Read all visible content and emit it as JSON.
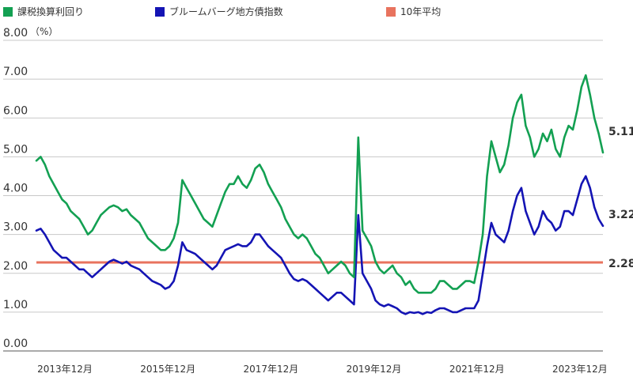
{
  "chart_data": {
    "type": "line",
    "unit_label": "（%）",
    "ylim": [
      0,
      8
    ],
    "y_ticks": [
      "0.00",
      "1.00",
      "2.00",
      "3.00",
      "4.00",
      "5.00",
      "6.00",
      "7.00",
      "8.00"
    ],
    "x_tick_labels": [
      "2013年12月",
      "2015年12月",
      "2017年12月",
      "2019年12月",
      "2021年12月",
      "2023年12月"
    ],
    "x_start": "2013-12",
    "x_end": "2024-12",
    "grid": true,
    "legend_position": "top",
    "series": [
      {
        "name": "課税換算利回り",
        "color": "#13a052",
        "end_label": "5.11",
        "points": [
          [
            "2013-12",
            4.9
          ],
          [
            "2014-01",
            5.0
          ],
          [
            "2014-02",
            4.8
          ],
          [
            "2014-03",
            4.5
          ],
          [
            "2014-04",
            4.3
          ],
          [
            "2014-05",
            4.1
          ],
          [
            "2014-06",
            3.9
          ],
          [
            "2014-07",
            3.8
          ],
          [
            "2014-08",
            3.6
          ],
          [
            "2014-09",
            3.5
          ],
          [
            "2014-10",
            3.4
          ],
          [
            "2014-11",
            3.2
          ],
          [
            "2014-12",
            3.0
          ],
          [
            "2015-01",
            3.1
          ],
          [
            "2015-02",
            3.3
          ],
          [
            "2015-03",
            3.5
          ],
          [
            "2015-04",
            3.6
          ],
          [
            "2015-05",
            3.7
          ],
          [
            "2015-06",
            3.75
          ],
          [
            "2015-07",
            3.7
          ],
          [
            "2015-08",
            3.6
          ],
          [
            "2015-09",
            3.65
          ],
          [
            "2015-10",
            3.5
          ],
          [
            "2015-11",
            3.4
          ],
          [
            "2015-12",
            3.3
          ],
          [
            "2016-01",
            3.1
          ],
          [
            "2016-02",
            2.9
          ],
          [
            "2016-03",
            2.8
          ],
          [
            "2016-04",
            2.7
          ],
          [
            "2016-05",
            2.6
          ],
          [
            "2016-06",
            2.6
          ],
          [
            "2016-07",
            2.7
          ],
          [
            "2016-08",
            2.9
          ],
          [
            "2016-09",
            3.3
          ],
          [
            "2016-10",
            4.4
          ],
          [
            "2016-11",
            4.2
          ],
          [
            "2016-12",
            4.0
          ],
          [
            "2017-01",
            3.8
          ],
          [
            "2017-02",
            3.6
          ],
          [
            "2017-03",
            3.4
          ],
          [
            "2017-04",
            3.3
          ],
          [
            "2017-05",
            3.2
          ],
          [
            "2017-06",
            3.5
          ],
          [
            "2017-07",
            3.8
          ],
          [
            "2017-08",
            4.1
          ],
          [
            "2017-09",
            4.3
          ],
          [
            "2017-10",
            4.3
          ],
          [
            "2017-11",
            4.5
          ],
          [
            "2017-12",
            4.3
          ],
          [
            "2018-01",
            4.2
          ],
          [
            "2018-02",
            4.4
          ],
          [
            "2018-03",
            4.7
          ],
          [
            "2018-04",
            4.8
          ],
          [
            "2018-05",
            4.6
          ],
          [
            "2018-06",
            4.3
          ],
          [
            "2018-07",
            4.1
          ],
          [
            "2018-08",
            3.9
          ],
          [
            "2018-09",
            3.7
          ],
          [
            "2018-10",
            3.4
          ],
          [
            "2018-11",
            3.2
          ],
          [
            "2018-12",
            3.0
          ],
          [
            "2019-01",
            2.9
          ],
          [
            "2019-02",
            3.0
          ],
          [
            "2019-03",
            2.9
          ],
          [
            "2019-04",
            2.7
          ],
          [
            "2019-05",
            2.5
          ],
          [
            "2019-06",
            2.4
          ],
          [
            "2019-07",
            2.2
          ],
          [
            "2019-08",
            2.0
          ],
          [
            "2019-09",
            2.1
          ],
          [
            "2019-10",
            2.2
          ],
          [
            "2019-11",
            2.3
          ],
          [
            "2019-12",
            2.2
          ],
          [
            "2020-01",
            2.0
          ],
          [
            "2020-02",
            1.9
          ],
          [
            "2020-03",
            5.5
          ],
          [
            "2020-04",
            3.1
          ],
          [
            "2020-05",
            2.9
          ],
          [
            "2020-06",
            2.7
          ],
          [
            "2020-07",
            2.3
          ],
          [
            "2020-08",
            2.1
          ],
          [
            "2020-09",
            2.0
          ],
          [
            "2020-10",
            2.1
          ],
          [
            "2020-11",
            2.2
          ],
          [
            "2020-12",
            2.0
          ],
          [
            "2021-01",
            1.9
          ],
          [
            "2021-02",
            1.7
          ],
          [
            "2021-03",
            1.8
          ],
          [
            "2021-04",
            1.6
          ],
          [
            "2021-05",
            1.5
          ],
          [
            "2021-06",
            1.5
          ],
          [
            "2021-07",
            1.5
          ],
          [
            "2021-08",
            1.5
          ],
          [
            "2021-09",
            1.6
          ],
          [
            "2021-10",
            1.8
          ],
          [
            "2021-11",
            1.8
          ],
          [
            "2021-12",
            1.7
          ],
          [
            "2022-01",
            1.6
          ],
          [
            "2022-02",
            1.6
          ],
          [
            "2022-03",
            1.7
          ],
          [
            "2022-04",
            1.8
          ],
          [
            "2022-05",
            1.8
          ],
          [
            "2022-06",
            1.75
          ],
          [
            "2022-07",
            2.3
          ],
          [
            "2022-08",
            3.0
          ],
          [
            "2022-09",
            4.5
          ],
          [
            "2022-10",
            5.4
          ],
          [
            "2022-11",
            5.0
          ],
          [
            "2022-12",
            4.6
          ],
          [
            "2023-01",
            4.8
          ],
          [
            "2023-02",
            5.3
          ],
          [
            "2023-03",
            6.0
          ],
          [
            "2023-04",
            6.4
          ],
          [
            "2023-05",
            6.6
          ],
          [
            "2023-06",
            5.8
          ],
          [
            "2023-07",
            5.5
          ],
          [
            "2023-08",
            5.0
          ],
          [
            "2023-09",
            5.2
          ],
          [
            "2023-10",
            5.6
          ],
          [
            "2023-11",
            5.4
          ],
          [
            "2023-12",
            5.7
          ],
          [
            "2024-01",
            5.2
          ],
          [
            "2024-02",
            5.0
          ],
          [
            "2024-03",
            5.5
          ],
          [
            "2024-04",
            5.8
          ],
          [
            "2024-05",
            5.7
          ],
          [
            "2024-06",
            6.2
          ],
          [
            "2024-07",
            6.8
          ],
          [
            "2024-08",
            7.1
          ],
          [
            "2024-09",
            6.6
          ],
          [
            "2024-10",
            6.0
          ],
          [
            "2024-11",
            5.6
          ],
          [
            "2024-12",
            5.11
          ]
        ]
      },
      {
        "name": "ブルームバーグ地方債指数",
        "color": "#1414b4",
        "end_label": "3.22",
        "points": [
          [
            "2013-12",
            3.1
          ],
          [
            "2014-01",
            3.15
          ],
          [
            "2014-02",
            3.0
          ],
          [
            "2014-03",
            2.8
          ],
          [
            "2014-04",
            2.6
          ],
          [
            "2014-05",
            2.5
          ],
          [
            "2014-06",
            2.4
          ],
          [
            "2014-07",
            2.4
          ],
          [
            "2014-08",
            2.3
          ],
          [
            "2014-09",
            2.2
          ],
          [
            "2014-10",
            2.1
          ],
          [
            "2014-11",
            2.1
          ],
          [
            "2014-12",
            2.0
          ],
          [
            "2015-01",
            1.9
          ],
          [
            "2015-02",
            2.0
          ],
          [
            "2015-03",
            2.1
          ],
          [
            "2015-04",
            2.2
          ],
          [
            "2015-05",
            2.3
          ],
          [
            "2015-06",
            2.35
          ],
          [
            "2015-07",
            2.3
          ],
          [
            "2015-08",
            2.25
          ],
          [
            "2015-09",
            2.3
          ],
          [
            "2015-10",
            2.2
          ],
          [
            "2015-11",
            2.15
          ],
          [
            "2015-12",
            2.1
          ],
          [
            "2016-01",
            2.0
          ],
          [
            "2016-02",
            1.9
          ],
          [
            "2016-03",
            1.8
          ],
          [
            "2016-04",
            1.75
          ],
          [
            "2016-05",
            1.7
          ],
          [
            "2016-06",
            1.6
          ],
          [
            "2016-07",
            1.65
          ],
          [
            "2016-08",
            1.8
          ],
          [
            "2016-09",
            2.2
          ],
          [
            "2016-10",
            2.8
          ],
          [
            "2016-11",
            2.6
          ],
          [
            "2016-12",
            2.55
          ],
          [
            "2017-01",
            2.5
          ],
          [
            "2017-02",
            2.4
          ],
          [
            "2017-03",
            2.3
          ],
          [
            "2017-04",
            2.2
          ],
          [
            "2017-05",
            2.1
          ],
          [
            "2017-06",
            2.2
          ],
          [
            "2017-07",
            2.4
          ],
          [
            "2017-08",
            2.6
          ],
          [
            "2017-09",
            2.65
          ],
          [
            "2017-10",
            2.7
          ],
          [
            "2017-11",
            2.75
          ],
          [
            "2017-12",
            2.7
          ],
          [
            "2018-01",
            2.7
          ],
          [
            "2018-02",
            2.8
          ],
          [
            "2018-03",
            3.0
          ],
          [
            "2018-04",
            3.0
          ],
          [
            "2018-05",
            2.85
          ],
          [
            "2018-06",
            2.7
          ],
          [
            "2018-07",
            2.6
          ],
          [
            "2018-08",
            2.5
          ],
          [
            "2018-09",
            2.4
          ],
          [
            "2018-10",
            2.2
          ],
          [
            "2018-11",
            2.0
          ],
          [
            "2018-12",
            1.85
          ],
          [
            "2019-01",
            1.8
          ],
          [
            "2019-02",
            1.85
          ],
          [
            "2019-03",
            1.8
          ],
          [
            "2019-04",
            1.7
          ],
          [
            "2019-05",
            1.6
          ],
          [
            "2019-06",
            1.5
          ],
          [
            "2019-07",
            1.4
          ],
          [
            "2019-08",
            1.3
          ],
          [
            "2019-09",
            1.4
          ],
          [
            "2019-10",
            1.5
          ],
          [
            "2019-11",
            1.5
          ],
          [
            "2019-12",
            1.4
          ],
          [
            "2020-01",
            1.3
          ],
          [
            "2020-02",
            1.2
          ],
          [
            "2020-03",
            3.5
          ],
          [
            "2020-04",
            2.0
          ],
          [
            "2020-05",
            1.8
          ],
          [
            "2020-06",
            1.6
          ],
          [
            "2020-07",
            1.3
          ],
          [
            "2020-08",
            1.2
          ],
          [
            "2020-09",
            1.15
          ],
          [
            "2020-10",
            1.2
          ],
          [
            "2020-11",
            1.15
          ],
          [
            "2020-12",
            1.1
          ],
          [
            "2021-01",
            1.0
          ],
          [
            "2021-02",
            0.95
          ],
          [
            "2021-03",
            1.0
          ],
          [
            "2021-04",
            0.98
          ],
          [
            "2021-05",
            1.0
          ],
          [
            "2021-06",
            0.95
          ],
          [
            "2021-07",
            1.0
          ],
          [
            "2021-08",
            0.98
          ],
          [
            "2021-09",
            1.05
          ],
          [
            "2021-10",
            1.1
          ],
          [
            "2021-11",
            1.1
          ],
          [
            "2021-12",
            1.05
          ],
          [
            "2022-01",
            1.0
          ],
          [
            "2022-02",
            1.0
          ],
          [
            "2022-03",
            1.05
          ],
          [
            "2022-04",
            1.1
          ],
          [
            "2022-05",
            1.1
          ],
          [
            "2022-06",
            1.1
          ],
          [
            "2022-07",
            1.3
          ],
          [
            "2022-08",
            2.0
          ],
          [
            "2022-09",
            2.7
          ],
          [
            "2022-10",
            3.3
          ],
          [
            "2022-11",
            3.0
          ],
          [
            "2022-12",
            2.9
          ],
          [
            "2023-01",
            2.8
          ],
          [
            "2023-02",
            3.1
          ],
          [
            "2023-03",
            3.6
          ],
          [
            "2023-04",
            4.0
          ],
          [
            "2023-05",
            4.2
          ],
          [
            "2023-06",
            3.6
          ],
          [
            "2023-07",
            3.3
          ],
          [
            "2023-08",
            3.0
          ],
          [
            "2023-09",
            3.2
          ],
          [
            "2023-10",
            3.6
          ],
          [
            "2023-11",
            3.4
          ],
          [
            "2023-12",
            3.3
          ],
          [
            "2024-01",
            3.1
          ],
          [
            "2024-02",
            3.2
          ],
          [
            "2024-03",
            3.6
          ],
          [
            "2024-04",
            3.6
          ],
          [
            "2024-05",
            3.5
          ],
          [
            "2024-06",
            3.9
          ],
          [
            "2024-07",
            4.3
          ],
          [
            "2024-08",
            4.5
          ],
          [
            "2024-09",
            4.2
          ],
          [
            "2024-10",
            3.7
          ],
          [
            "2024-11",
            3.4
          ],
          [
            "2024-12",
            3.22
          ]
        ]
      },
      {
        "name": "10年平均",
        "color": "#e8735e",
        "end_label": "2.28",
        "constant": 2.28
      }
    ]
  }
}
